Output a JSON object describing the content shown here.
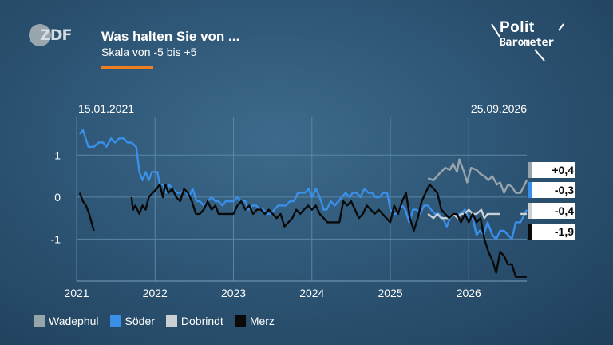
{
  "header": {
    "title": "Was halten Sie von ...",
    "subtitle": "Skala von -5 bis +5",
    "zdf_logo": "ZDF",
    "brand_line1": "Polit",
    "brand_line2": "Barometer",
    "accent_color": "#f07d1e"
  },
  "chart_data": {
    "type": "line",
    "title": "Was halten Sie von ...",
    "subtitle": "Skala von -5 bis +5",
    "start_label": "15.01.2021",
    "end_label": "25.09.2026",
    "xlim": [
      2021.0,
      2026.74
    ],
    "ylim": [
      -2.0,
      1.9
    ],
    "y_ticks": [
      1,
      0,
      -1
    ],
    "y_tick_labels": [
      "1",
      "0",
      "-1"
    ],
    "x_ticks": [
      2021,
      2022,
      2023,
      2024,
      2025,
      2026
    ],
    "x_tick_labels": [
      "2021",
      "2022",
      "2023",
      "2024",
      "2025",
      "2026"
    ],
    "grid": true,
    "legend_position": "bottom-left",
    "series": [
      {
        "name": "Wadephul",
        "color": "#98a4ac",
        "end_label": "+0,4",
        "points": [
          [
            2025.48,
            0.45
          ],
          [
            2025.55,
            0.4
          ],
          [
            2025.62,
            0.55
          ],
          [
            2025.7,
            0.7
          ],
          [
            2025.76,
            0.65
          ],
          [
            2025.8,
            0.8
          ],
          [
            2025.85,
            0.6
          ],
          [
            2025.88,
            0.9
          ],
          [
            2025.93,
            0.65
          ],
          [
            2025.98,
            0.35
          ],
          [
            2026.03,
            0.7
          ],
          [
            2026.1,
            0.65
          ],
          [
            2026.15,
            0.55
          ],
          [
            2026.2,
            0.5
          ],
          [
            2026.25,
            0.4
          ],
          [
            2026.3,
            0.5
          ],
          [
            2026.36,
            0.3
          ],
          [
            2026.4,
            0.35
          ],
          [
            2026.45,
            0.1
          ],
          [
            2026.5,
            0.3
          ],
          [
            2026.55,
            0.25
          ],
          [
            2026.6,
            0.1
          ],
          [
            2026.66,
            0.1
          ],
          [
            2026.74,
            0.4
          ]
        ]
      },
      {
        "name": "Söder",
        "color": "#3a8fe8",
        "end_label": "-0,3",
        "points": [
          [
            2021.04,
            1.5
          ],
          [
            2021.08,
            1.6
          ],
          [
            2021.15,
            1.2
          ],
          [
            2021.22,
            1.2
          ],
          [
            2021.28,
            1.3
          ],
          [
            2021.34,
            1.3
          ],
          [
            2021.38,
            1.2
          ],
          [
            2021.44,
            1.4
          ],
          [
            2021.49,
            1.3
          ],
          [
            2021.54,
            1.4
          ],
          [
            2021.6,
            1.4
          ],
          [
            2021.65,
            1.3
          ],
          [
            2021.7,
            1.3
          ],
          [
            2021.76,
            1.2
          ],
          [
            2021.8,
            0.6
          ],
          [
            2021.84,
            0.4
          ],
          [
            2021.88,
            0.6
          ],
          [
            2021.92,
            0.4
          ],
          [
            2021.96,
            0.6
          ],
          [
            2022.03,
            0.6
          ],
          [
            2022.06,
            0.3
          ],
          [
            2022.1,
            0.3
          ],
          [
            2022.14,
            0.1
          ],
          [
            2022.18,
            0.3
          ],
          [
            2022.22,
            0.2
          ],
          [
            2022.28,
            0.1
          ],
          [
            2022.33,
            0.1
          ],
          [
            2022.38,
            0.2
          ],
          [
            2022.43,
            0.0
          ],
          [
            2022.48,
            0.2
          ],
          [
            2022.53,
            -0.1
          ],
          [
            2022.57,
            -0.1
          ],
          [
            2022.62,
            -0.2
          ],
          [
            2022.67,
            -0.1
          ],
          [
            2022.72,
            0.0
          ],
          [
            2022.77,
            -0.1
          ],
          [
            2022.81,
            -0.1
          ],
          [
            2022.86,
            -0.2
          ],
          [
            2022.9,
            -0.1
          ],
          [
            2022.95,
            -0.1
          ],
          [
            2023.0,
            -0.1
          ],
          [
            2023.05,
            0.0
          ],
          [
            2023.1,
            -0.1
          ],
          [
            2023.15,
            -0.1
          ],
          [
            2023.19,
            -0.3
          ],
          [
            2023.24,
            -0.2
          ],
          [
            2023.29,
            -0.2
          ],
          [
            2023.34,
            -0.3
          ],
          [
            2023.38,
            -0.3
          ],
          [
            2023.43,
            -0.4
          ],
          [
            2023.48,
            -0.4
          ],
          [
            2023.52,
            -0.3
          ],
          [
            2023.57,
            -0.2
          ],
          [
            2023.62,
            -0.2
          ],
          [
            2023.67,
            -0.2
          ],
          [
            2023.72,
            -0.1
          ],
          [
            2023.77,
            -0.1
          ],
          [
            2023.82,
            0.1
          ],
          [
            2023.86,
            0.1
          ],
          [
            2023.91,
            0.1
          ],
          [
            2023.96,
            0.2
          ],
          [
            2024.0,
            0.0
          ],
          [
            2024.05,
            0.2
          ],
          [
            2024.1,
            0.0
          ],
          [
            2024.15,
            -0.3
          ],
          [
            2024.19,
            -0.3
          ],
          [
            2024.24,
            -0.1
          ],
          [
            2024.29,
            -0.2
          ],
          [
            2024.34,
            -0.1
          ],
          [
            2024.38,
            0.0
          ],
          [
            2024.43,
            0.1
          ],
          [
            2024.48,
            0.0
          ],
          [
            2024.52,
            0.1
          ],
          [
            2024.57,
            0.1
          ],
          [
            2024.62,
            0.0
          ],
          [
            2024.67,
            0.2
          ],
          [
            2024.72,
            0.1
          ],
          [
            2024.77,
            0.1
          ],
          [
            2024.81,
            0.0
          ],
          [
            2024.86,
            0.0
          ],
          [
            2024.91,
            0.1
          ],
          [
            2024.96,
            0.1
          ],
          [
            2025.0,
            -0.3
          ],
          [
            2025.05,
            -0.4
          ],
          [
            2025.1,
            -0.4
          ],
          [
            2025.15,
            -0.2
          ],
          [
            2025.19,
            -0.3
          ],
          [
            2025.24,
            -0.6
          ],
          [
            2025.29,
            -0.3
          ],
          [
            2025.34,
            -0.3
          ],
          [
            2025.38,
            -0.4
          ],
          [
            2025.43,
            -0.2
          ],
          [
            2025.48,
            -0.2
          ],
          [
            2025.52,
            -0.3
          ],
          [
            2025.57,
            -0.4
          ],
          [
            2025.62,
            -0.4
          ],
          [
            2025.67,
            -0.5
          ],
          [
            2025.72,
            -0.7
          ],
          [
            2025.76,
            -0.5
          ],
          [
            2025.81,
            -0.4
          ],
          [
            2025.86,
            -0.4
          ],
          [
            2025.9,
            -0.4
          ],
          [
            2025.95,
            -0.3
          ],
          [
            2026.0,
            -0.5
          ],
          [
            2026.05,
            -0.5
          ],
          [
            2026.1,
            -0.9
          ],
          [
            2026.14,
            -0.8
          ],
          [
            2026.19,
            -0.9
          ],
          [
            2026.24,
            -0.6
          ],
          [
            2026.3,
            -0.9
          ],
          [
            2026.35,
            -1.0
          ],
          [
            2026.4,
            -0.8
          ],
          [
            2026.45,
            -0.8
          ],
          [
            2026.5,
            -0.9
          ],
          [
            2026.55,
            -1.0
          ],
          [
            2026.6,
            -0.6
          ],
          [
            2026.66,
            -0.6
          ],
          [
            2026.74,
            -0.3
          ]
        ]
      },
      {
        "name": "Dobrindt",
        "color": "#c9cfd3",
        "end_label": "-0,4",
        "points": [
          [
            2025.48,
            -0.4
          ],
          [
            2025.55,
            -0.5
          ],
          [
            2025.6,
            -0.4
          ],
          [
            2025.65,
            -0.5
          ],
          [
            2025.7,
            -0.5
          ],
          [
            2025.75,
            -0.5
          ],
          [
            2025.8,
            -0.4
          ],
          [
            2025.86,
            -0.5
          ],
          [
            2025.9,
            -0.4
          ],
          [
            2025.95,
            -0.4
          ],
          [
            2026.0,
            -0.3
          ],
          [
            2026.05,
            -0.4
          ],
          [
            2026.1,
            -0.4
          ],
          [
            2026.16,
            -0.3
          ],
          [
            2026.2,
            -0.5
          ],
          [
            2026.24,
            -0.4
          ],
          [
            2026.3,
            -0.4
          ],
          [
            2026.36,
            -0.4
          ],
          [
            2026.4,
            -0.4
          ],
          [
            2026.45,
            null
          ],
          [
            2026.66,
            -0.4
          ],
          [
            2026.74,
            -0.4
          ]
        ]
      },
      {
        "name": "Merz",
        "color": "#0a0a0a",
        "end_label": "-1,9",
        "points": [
          [
            2021.04,
            0.1
          ],
          [
            2021.08,
            -0.1
          ],
          [
            2021.12,
            -0.2
          ],
          [
            2021.16,
            -0.4
          ],
          [
            2021.22,
            -0.8
          ],
          [
            2021.3,
            null
          ],
          [
            2021.7,
            0.0
          ],
          [
            2021.72,
            -0.3
          ],
          [
            2021.75,
            -0.2
          ],
          [
            2021.8,
            -0.4
          ],
          [
            2021.84,
            -0.2
          ],
          [
            2021.88,
            -0.3
          ],
          [
            2021.92,
            0.0
          ],
          [
            2021.97,
            0.1
          ],
          [
            2022.02,
            0.2
          ],
          [
            2022.06,
            0.3
          ],
          [
            2022.1,
            0.0
          ],
          [
            2022.13,
            0.3
          ],
          [
            2022.17,
            0.1
          ],
          [
            2022.22,
            0.2
          ],
          [
            2022.27,
            0.0
          ],
          [
            2022.32,
            -0.1
          ],
          [
            2022.37,
            0.2
          ],
          [
            2022.42,
            0.1
          ],
          [
            2022.47,
            -0.1
          ],
          [
            2022.52,
            -0.4
          ],
          [
            2022.57,
            -0.4
          ],
          [
            2022.62,
            -0.3
          ],
          [
            2022.67,
            -0.1
          ],
          [
            2022.72,
            -0.3
          ],
          [
            2022.77,
            -0.2
          ],
          [
            2022.81,
            -0.4
          ],
          [
            2022.86,
            -0.4
          ],
          [
            2022.91,
            -0.4
          ],
          [
            2022.96,
            -0.4
          ],
          [
            2023.0,
            -0.4
          ],
          [
            2023.05,
            -0.2
          ],
          [
            2023.1,
            -0.1
          ],
          [
            2023.15,
            -0.3
          ],
          [
            2023.2,
            -0.2
          ],
          [
            2023.25,
            -0.4
          ],
          [
            2023.3,
            -0.3
          ],
          [
            2023.35,
            -0.3
          ],
          [
            2023.4,
            -0.4
          ],
          [
            2023.45,
            -0.3
          ],
          [
            2023.5,
            -0.4
          ],
          [
            2023.55,
            -0.5
          ],
          [
            2023.6,
            -0.4
          ],
          [
            2023.65,
            -0.7
          ],
          [
            2023.7,
            -0.6
          ],
          [
            2023.75,
            -0.5
          ],
          [
            2023.8,
            -0.3
          ],
          [
            2023.85,
            -0.4
          ],
          [
            2023.9,
            -0.3
          ],
          [
            2023.95,
            -0.2
          ],
          [
            2024.0,
            -0.3
          ],
          [
            2024.05,
            -0.2
          ],
          [
            2024.1,
            -0.4
          ],
          [
            2024.15,
            -0.5
          ],
          [
            2024.2,
            -0.6
          ],
          [
            2024.25,
            -0.6
          ],
          [
            2024.3,
            -0.6
          ],
          [
            2024.35,
            -0.6
          ],
          [
            2024.4,
            -0.1
          ],
          [
            2024.45,
            -0.2
          ],
          [
            2024.5,
            -0.1
          ],
          [
            2024.55,
            -0.3
          ],
          [
            2024.6,
            -0.5
          ],
          [
            2024.65,
            -0.4
          ],
          [
            2024.7,
            -0.2
          ],
          [
            2024.75,
            -0.3
          ],
          [
            2024.8,
            -0.4
          ],
          [
            2024.85,
            -0.3
          ],
          [
            2024.9,
            -0.4
          ],
          [
            2024.95,
            -0.5
          ],
          [
            2025.0,
            -0.6
          ],
          [
            2025.05,
            -0.2
          ],
          [
            2025.1,
            -0.4
          ],
          [
            2025.15,
            -0.1
          ],
          [
            2025.2,
            0.1
          ],
          [
            2025.25,
            -0.5
          ],
          [
            2025.3,
            -0.8
          ],
          [
            2025.35,
            -0.5
          ],
          [
            2025.4,
            -0.1
          ],
          [
            2025.45,
            0.1
          ],
          [
            2025.5,
            0.3
          ],
          [
            2025.55,
            0.2
          ],
          [
            2025.6,
            0.1
          ],
          [
            2025.65,
            -0.3
          ],
          [
            2025.7,
            -0.4
          ],
          [
            2025.75,
            -0.5
          ],
          [
            2025.8,
            -0.4
          ],
          [
            2025.85,
            -0.4
          ],
          [
            2025.9,
            -0.6
          ],
          [
            2025.95,
            -0.4
          ],
          [
            2026.0,
            -0.6
          ],
          [
            2026.05,
            -0.4
          ],
          [
            2026.1,
            -0.6
          ],
          [
            2026.15,
            -0.5
          ],
          [
            2026.2,
            -1.0
          ],
          [
            2026.25,
            -1.3
          ],
          [
            2026.3,
            -1.5
          ],
          [
            2026.35,
            -1.8
          ],
          [
            2026.4,
            -1.3
          ],
          [
            2026.45,
            -1.4
          ],
          [
            2026.5,
            -1.6
          ],
          [
            2026.55,
            -1.6
          ],
          [
            2026.6,
            -1.9
          ],
          [
            2026.66,
            -1.9
          ],
          [
            2026.74,
            -1.9
          ]
        ]
      }
    ]
  },
  "legend": {
    "items": [
      {
        "label": "Wadephul",
        "color": "#98a4ac"
      },
      {
        "label": "Söder",
        "color": "#3a8fe8"
      },
      {
        "label": "Dobrindt",
        "color": "#c9cfd3"
      },
      {
        "label": "Merz",
        "color": "#0a0a0a"
      }
    ]
  }
}
